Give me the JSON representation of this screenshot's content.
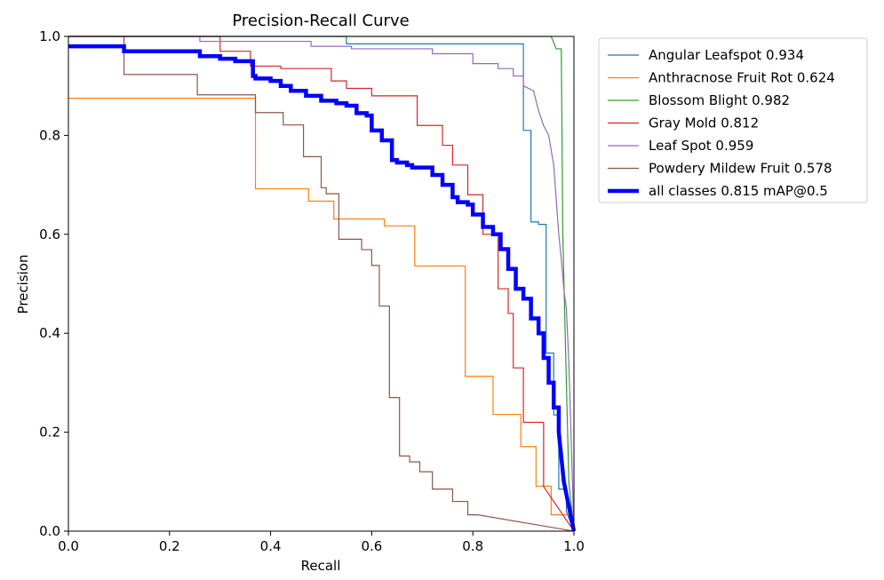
{
  "chart_data": {
    "type": "line",
    "title": "Precision-Recall Curve",
    "xlabel": "Recall",
    "ylabel": "Precision",
    "xlim": [
      0,
      1
    ],
    "ylim": [
      0,
      1
    ],
    "xticks": [
      "0.0",
      "0.2",
      "0.4",
      "0.6",
      "0.8",
      "1.0"
    ],
    "yticks": [
      "0.0",
      "0.2",
      "0.4",
      "0.6",
      "0.8",
      "1.0"
    ],
    "grid": false,
    "legend_position": "outside-top-right",
    "series": [
      {
        "name": "Angular Leafspot",
        "legend_label": "Angular Leafspot 0.934",
        "ap": 0.934,
        "color": "#1f77b4",
        "width": 1.2,
        "x": [
          0.0,
          0.0,
          0.55,
          0.55,
          0.9,
          0.9,
          0.915,
          0.915,
          0.93,
          0.93,
          0.945,
          0.945,
          0.96,
          0.96,
          0.97,
          0.97,
          0.985,
          0.985,
          1.0
        ],
        "y": [
          1.0,
          1.0,
          1.0,
          0.985,
          0.985,
          0.81,
          0.81,
          0.625,
          0.625,
          0.62,
          0.62,
          0.36,
          0.36,
          0.235,
          0.235,
          0.085,
          0.085,
          0.04,
          0.0
        ]
      },
      {
        "name": "Anthracnose Fruit Rot",
        "legend_label": "Anthracnose Fruit Rot 0.624",
        "ap": 0.624,
        "color": "#ff7f0e",
        "width": 1.2,
        "x": [
          0.0,
          0.37,
          0.37,
          0.475,
          0.475,
          0.525,
          0.525,
          0.625,
          0.625,
          0.685,
          0.685,
          0.785,
          0.785,
          0.84,
          0.84,
          0.895,
          0.895,
          0.925,
          0.925,
          0.955,
          0.955,
          0.995,
          1.0
        ],
        "y": [
          0.875,
          0.875,
          0.692,
          0.692,
          0.667,
          0.667,
          0.631,
          0.631,
          0.617,
          0.617,
          0.536,
          0.536,
          0.313,
          0.313,
          0.236,
          0.236,
          0.171,
          0.171,
          0.091,
          0.091,
          0.033,
          0.033,
          0.0
        ]
      },
      {
        "name": "Blossom Blight",
        "legend_label": "Blossom Blight 0.982",
        "ap": 0.982,
        "color": "#2ca02c",
        "width": 1.2,
        "x": [
          0.0,
          0.955,
          0.955,
          0.965,
          0.965,
          0.975,
          0.975,
          0.978,
          0.985,
          0.99,
          0.995,
          1.0
        ],
        "y": [
          1.0,
          1.0,
          1.0,
          0.975,
          0.975,
          0.975,
          0.975,
          0.6,
          0.3,
          0.1,
          0.05,
          0.0
        ]
      },
      {
        "name": "Gray Mold",
        "legend_label": "Gray Mold 0.812",
        "ap": 0.812,
        "color": "#d62728",
        "width": 1.2,
        "x": [
          0.0,
          0.3,
          0.3,
          0.36,
          0.36,
          0.42,
          0.42,
          0.52,
          0.52,
          0.55,
          0.55,
          0.6,
          0.6,
          0.69,
          0.69,
          0.74,
          0.74,
          0.76,
          0.76,
          0.79,
          0.79,
          0.82,
          0.82,
          0.85,
          0.85,
          0.87,
          0.87,
          0.88,
          0.88,
          0.9,
          0.9,
          0.94,
          0.94,
          1.0
        ],
        "y": [
          1.0,
          1.0,
          0.97,
          0.97,
          0.94,
          0.94,
          0.935,
          0.935,
          0.91,
          0.91,
          0.895,
          0.895,
          0.88,
          0.88,
          0.82,
          0.82,
          0.78,
          0.78,
          0.74,
          0.74,
          0.68,
          0.68,
          0.6,
          0.6,
          0.49,
          0.49,
          0.44,
          0.44,
          0.33,
          0.33,
          0.22,
          0.22,
          0.09,
          0.0
        ]
      },
      {
        "name": "Leaf Spot",
        "legend_label": "Leaf Spot 0.959",
        "ap": 0.959,
        "color": "#9467bd",
        "width": 1.2,
        "x": [
          0.0,
          0.26,
          0.26,
          0.48,
          0.48,
          0.56,
          0.56,
          0.72,
          0.72,
          0.8,
          0.8,
          0.85,
          0.85,
          0.88,
          0.88,
          0.9,
          0.9,
          0.92,
          0.93,
          0.94,
          0.95,
          0.96,
          0.97,
          0.975,
          0.98,
          0.985,
          0.99,
          1.0
        ],
        "y": [
          1.0,
          1.0,
          0.99,
          0.99,
          0.98,
          0.98,
          0.975,
          0.975,
          0.965,
          0.965,
          0.945,
          0.945,
          0.935,
          0.935,
          0.92,
          0.92,
          0.9,
          0.89,
          0.85,
          0.82,
          0.8,
          0.74,
          0.6,
          0.55,
          0.49,
          0.45,
          0.34,
          0.0
        ]
      },
      {
        "name": "Powdery Mildew Fruit",
        "legend_label": "Powdery Mildew Fruit 0.578",
        "ap": 0.578,
        "color": "#8c564b",
        "width": 1.2,
        "x": [
          0.0,
          0.11,
          0.11,
          0.255,
          0.255,
          0.37,
          0.37,
          0.425,
          0.425,
          0.465,
          0.465,
          0.5,
          0.5,
          0.51,
          0.51,
          0.535,
          0.535,
          0.58,
          0.58,
          0.6,
          0.6,
          0.615,
          0.615,
          0.635,
          0.635,
          0.655,
          0.655,
          0.675,
          0.675,
          0.695,
          0.695,
          0.72,
          0.72,
          0.76,
          0.76,
          0.79,
          0.79,
          0.81,
          0.81,
          1.0
        ],
        "y": [
          1.0,
          1.0,
          0.923,
          0.923,
          0.882,
          0.882,
          0.846,
          0.846,
          0.821,
          0.821,
          0.757,
          0.757,
          0.694,
          0.694,
          0.682,
          0.682,
          0.59,
          0.59,
          0.569,
          0.569,
          0.537,
          0.537,
          0.455,
          0.455,
          0.27,
          0.27,
          0.152,
          0.152,
          0.14,
          0.14,
          0.12,
          0.12,
          0.085,
          0.085,
          0.06,
          0.06,
          0.033,
          0.033,
          0.033,
          0.0
        ]
      },
      {
        "name": "all classes",
        "legend_label": "all classes 0.815 mAP@0.5",
        "ap": 0.815,
        "color": "#0000ff",
        "width": 4.5,
        "x": [
          0.0,
          0.06,
          0.06,
          0.11,
          0.11,
          0.26,
          0.26,
          0.3,
          0.3,
          0.33,
          0.33,
          0.365,
          0.365,
          0.37,
          0.37,
          0.4,
          0.4,
          0.42,
          0.42,
          0.44,
          0.44,
          0.47,
          0.47,
          0.5,
          0.5,
          0.53,
          0.53,
          0.55,
          0.55,
          0.57,
          0.57,
          0.59,
          0.59,
          0.6,
          0.6,
          0.62,
          0.62,
          0.64,
          0.64,
          0.65,
          0.65,
          0.67,
          0.67,
          0.68,
          0.68,
          0.72,
          0.72,
          0.74,
          0.74,
          0.76,
          0.76,
          0.77,
          0.77,
          0.79,
          0.79,
          0.8,
          0.8,
          0.82,
          0.82,
          0.84,
          0.84,
          0.855,
          0.855,
          0.87,
          0.87,
          0.885,
          0.885,
          0.9,
          0.9,
          0.915,
          0.915,
          0.93,
          0.93,
          0.94,
          0.94,
          0.95,
          0.95,
          0.96,
          0.96,
          0.97,
          0.97,
          0.975,
          0.98,
          0.99,
          1.0
        ],
        "y": [
          0.98,
          0.98,
          0.98,
          0.98,
          0.97,
          0.97,
          0.96,
          0.96,
          0.955,
          0.955,
          0.95,
          0.95,
          0.92,
          0.92,
          0.915,
          0.915,
          0.91,
          0.91,
          0.9,
          0.9,
          0.89,
          0.89,
          0.88,
          0.88,
          0.87,
          0.87,
          0.865,
          0.865,
          0.86,
          0.86,
          0.845,
          0.845,
          0.84,
          0.84,
          0.81,
          0.81,
          0.79,
          0.79,
          0.75,
          0.75,
          0.745,
          0.745,
          0.74,
          0.74,
          0.735,
          0.735,
          0.72,
          0.72,
          0.7,
          0.7,
          0.675,
          0.675,
          0.665,
          0.665,
          0.66,
          0.66,
          0.64,
          0.64,
          0.615,
          0.615,
          0.6,
          0.6,
          0.57,
          0.57,
          0.53,
          0.53,
          0.49,
          0.49,
          0.47,
          0.47,
          0.43,
          0.43,
          0.4,
          0.4,
          0.35,
          0.35,
          0.3,
          0.3,
          0.25,
          0.25,
          0.2,
          0.15,
          0.1,
          0.05,
          0.0
        ]
      }
    ]
  }
}
